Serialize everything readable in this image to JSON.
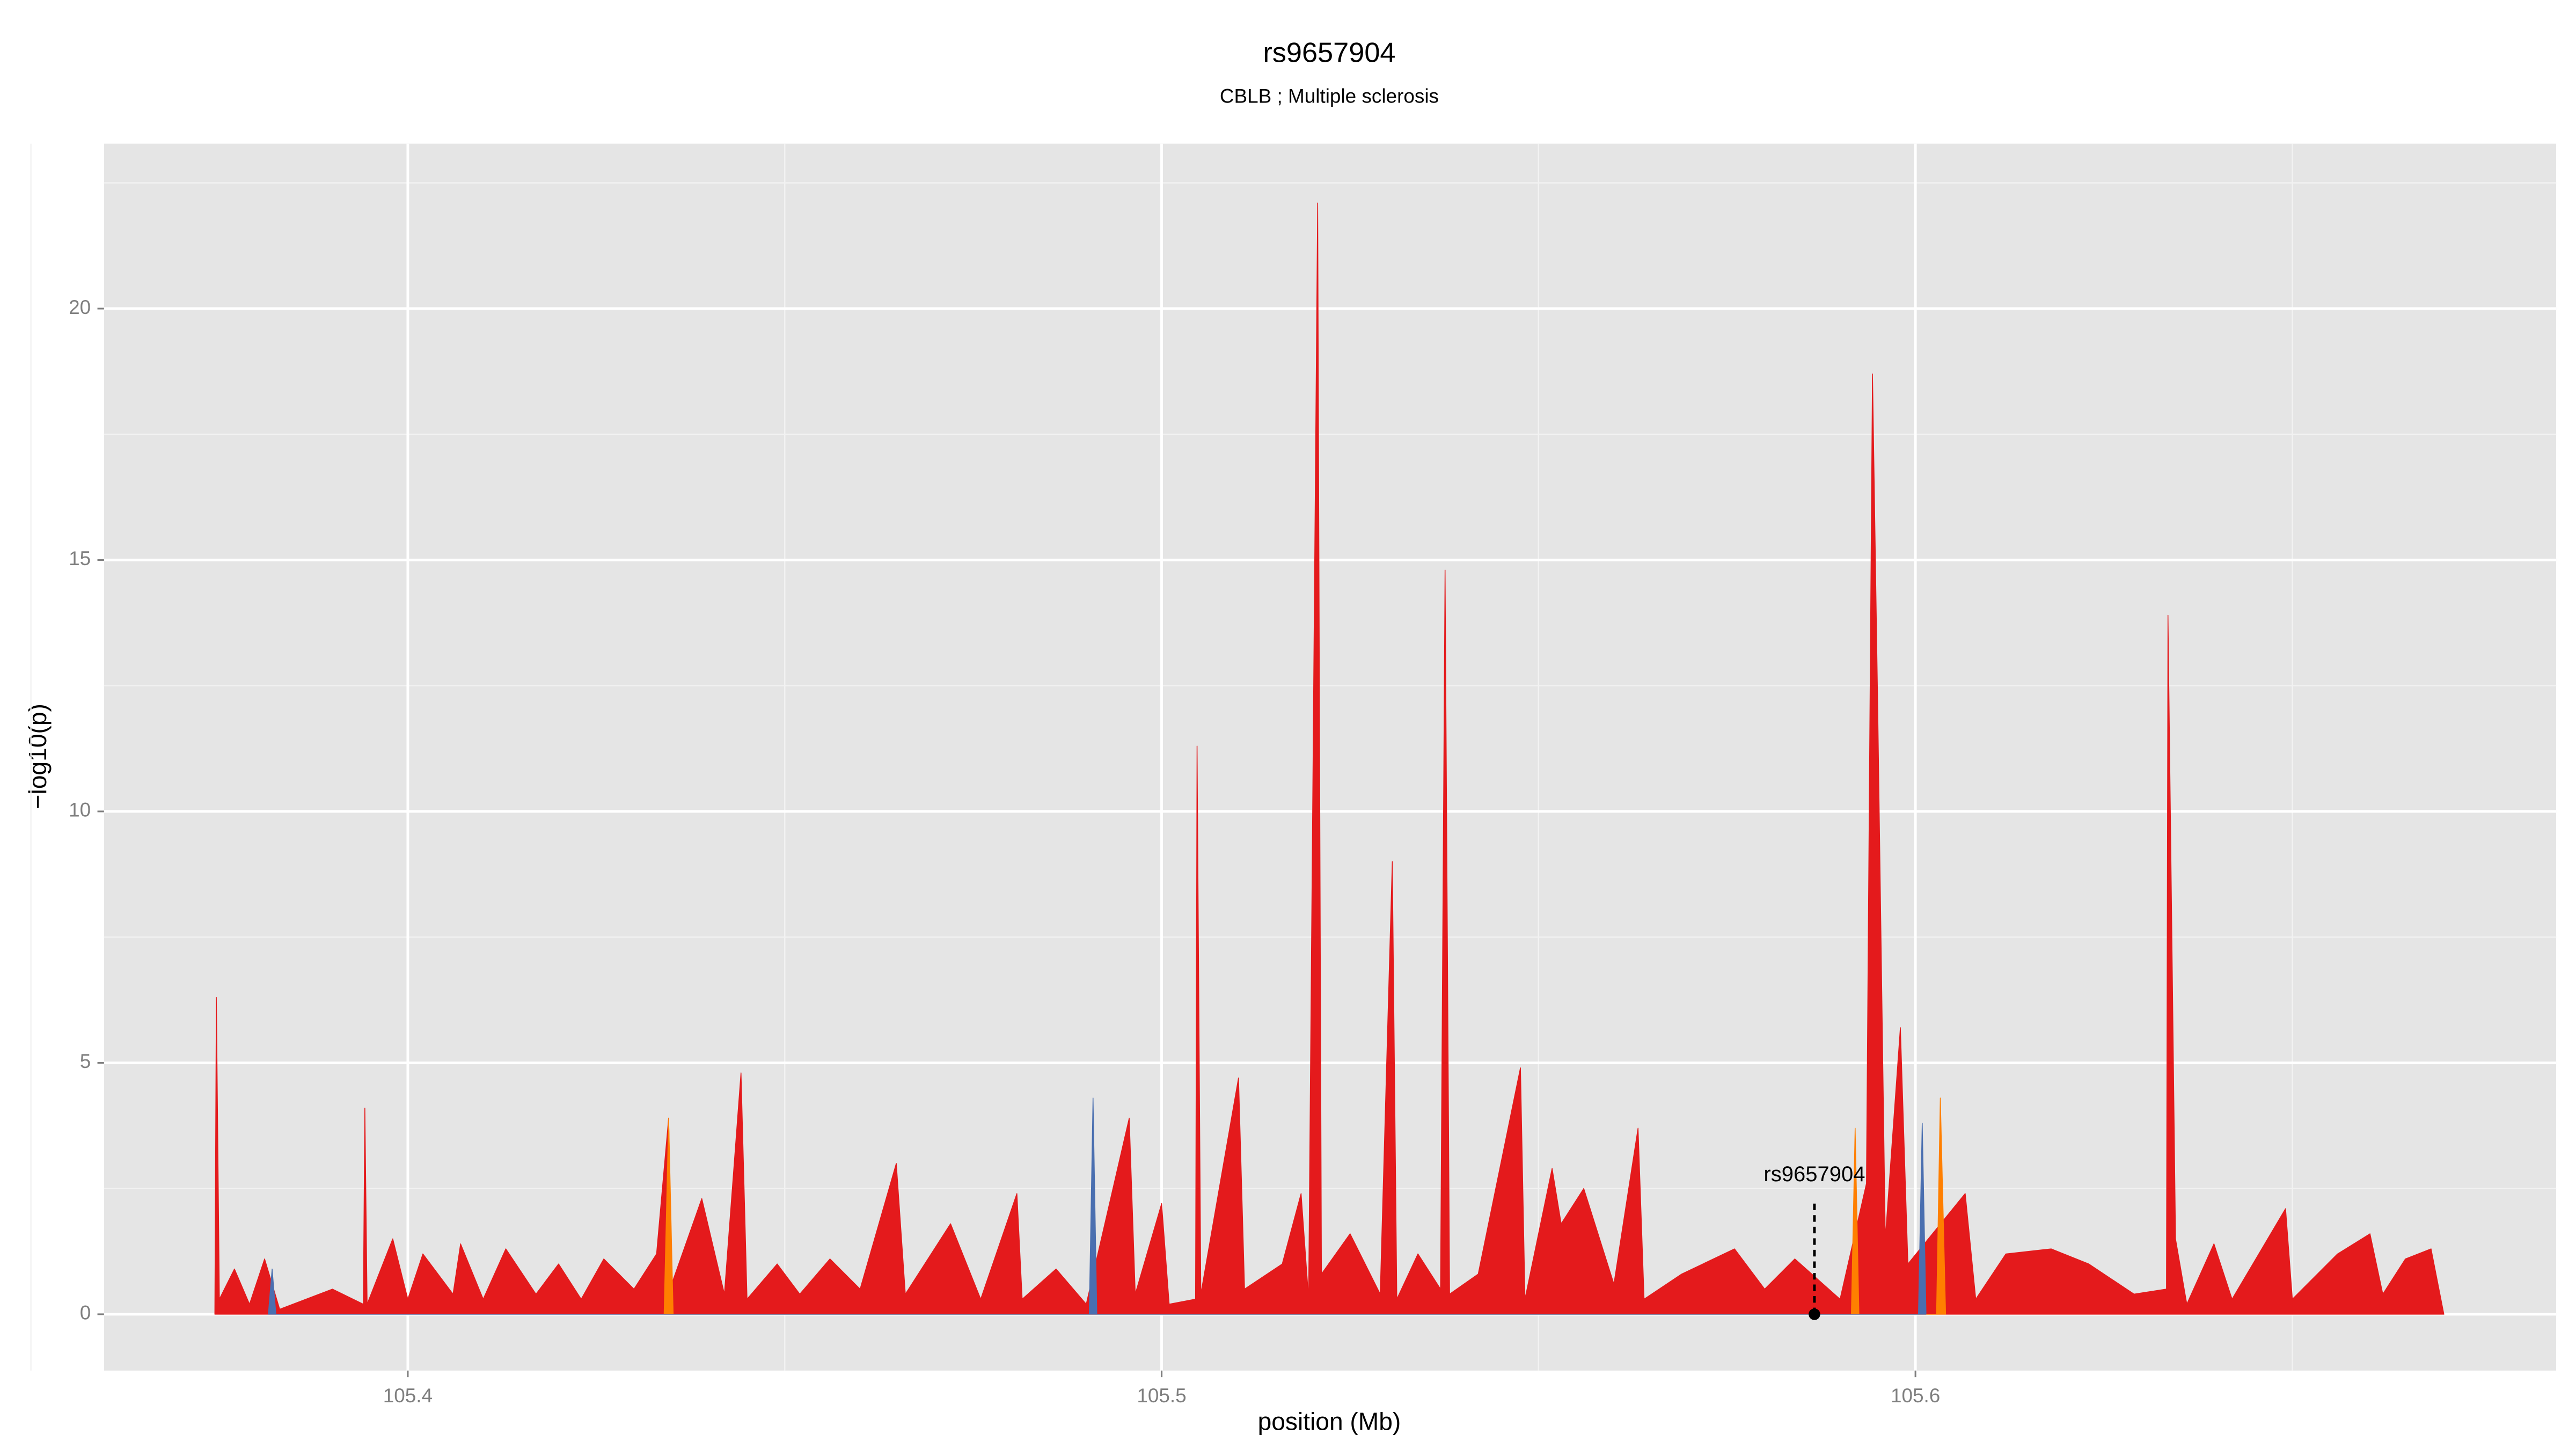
{
  "chart_data": {
    "type": "area",
    "title": "rs9657904",
    "subtitle": "CBLB ; Multiple sclerosis",
    "xlabel": "position (Mb)",
    "ylabel": "−log10(p)",
    "xlim": [
      105.3597,
      105.685
    ],
    "ylim": [
      -1.12,
      23.28
    ],
    "xticks": [
      105.4,
      105.5,
      105.6
    ],
    "yticks": [
      0,
      5,
      10,
      15,
      20
    ],
    "x_minor_ticks": [
      105.35,
      105.45,
      105.55,
      105.65
    ],
    "y_minor_ticks": [
      2.5,
      7.5,
      12.5,
      17.5,
      22.5
    ],
    "grid": true,
    "series": [
      {
        "color": "#e41a1c",
        "x": [
          105.3744,
          105.3746,
          105.375,
          105.377,
          105.379,
          105.381,
          105.383,
          105.39,
          105.3941,
          105.3943,
          105.3946,
          105.398,
          105.4,
          105.402,
          105.406,
          105.407,
          105.41,
          105.413,
          105.417,
          105.42,
          105.423,
          105.426,
          105.43,
          105.433,
          105.4346,
          105.435,
          105.439,
          105.442,
          105.4442,
          105.445,
          105.449,
          105.452,
          105.456,
          105.46,
          105.4648,
          105.466,
          105.472,
          105.476,
          105.4808,
          105.4815,
          105.486,
          105.49,
          105.4957,
          105.4965,
          105.5,
          105.501,
          105.5045,
          105.5047,
          105.5052,
          105.5102,
          105.511,
          105.516,
          105.5185,
          105.5195,
          105.5207,
          105.5212,
          105.525,
          105.529,
          105.5306,
          105.5312,
          105.534,
          105.537,
          105.5376,
          105.5382,
          105.542,
          105.5476,
          105.5482,
          105.5518,
          105.553,
          105.556,
          105.56,
          105.5632,
          105.564,
          105.569,
          105.576,
          105.58,
          105.584,
          105.59,
          105.5935,
          105.5943,
          105.595,
          105.596,
          105.598,
          105.599,
          105.6066,
          105.608,
          105.612,
          105.618,
          105.623,
          105.629,
          105.6333,
          105.6335,
          105.6345,
          105.636,
          105.6396,
          105.642,
          105.6491,
          105.65,
          105.656,
          105.6603,
          105.662,
          105.665,
          105.6684,
          105.6701
        ],
        "values": [
          0,
          6.3,
          0.3,
          0.9,
          0.2,
          1.1,
          0.1,
          0.5,
          0.2,
          4.1,
          0.2,
          1.5,
          0.3,
          1.2,
          0.4,
          1.4,
          0.3,
          1.3,
          0.4,
          1.0,
          0.3,
          1.1,
          0.5,
          1.2,
          3.9,
          0.6,
          2.3,
          0.4,
          4.8,
          0.3,
          1.0,
          0.4,
          1.1,
          0.5,
          3.0,
          0.4,
          1.8,
          0.3,
          2.4,
          0.3,
          0.9,
          0.2,
          3.9,
          0.4,
          2.2,
          0.2,
          0.3,
          11.3,
          0.4,
          4.7,
          0.5,
          1.0,
          2.4,
          0.3,
          22.1,
          0.8,
          1.6,
          0.4,
          9.0,
          0.3,
          1.2,
          0.5,
          14.8,
          0.4,
          0.8,
          4.9,
          0.3,
          2.9,
          1.8,
          2.5,
          0.6,
          3.7,
          0.3,
          0.8,
          1.3,
          0.5,
          1.1,
          0.3,
          2.6,
          18.7,
          12.0,
          1.5,
          5.7,
          1.0,
          2.4,
          0.3,
          1.2,
          1.3,
          1.0,
          0.4,
          0.5,
          13.9,
          1.5,
          0.2,
          1.4,
          0.3,
          2.1,
          0.3,
          1.2,
          1.6,
          0.4,
          1.1,
          1.3,
          0
        ]
      },
      {
        "color": "#ff7f00",
        "x": [
          105.434,
          105.4346,
          105.4352,
          105.5915,
          105.592,
          105.5925,
          105.6028,
          105.6033,
          105.604
        ],
        "values": [
          0,
          3.9,
          0,
          0,
          3.7,
          0,
          0,
          4.3,
          0
        ]
      },
      {
        "color": "#4a6fb0",
        "x": [
          105.3815,
          105.382,
          105.3825,
          105.4904,
          105.4909,
          105.4914,
          105.6004,
          105.6009,
          105.6014
        ],
        "values": [
          0,
          0.9,
          0,
          0,
          4.3,
          0,
          0,
          3.8,
          0
        ]
      }
    ],
    "annotation": {
      "text": "rs9657904",
      "x": 105.5866,
      "y": 0
    }
  }
}
